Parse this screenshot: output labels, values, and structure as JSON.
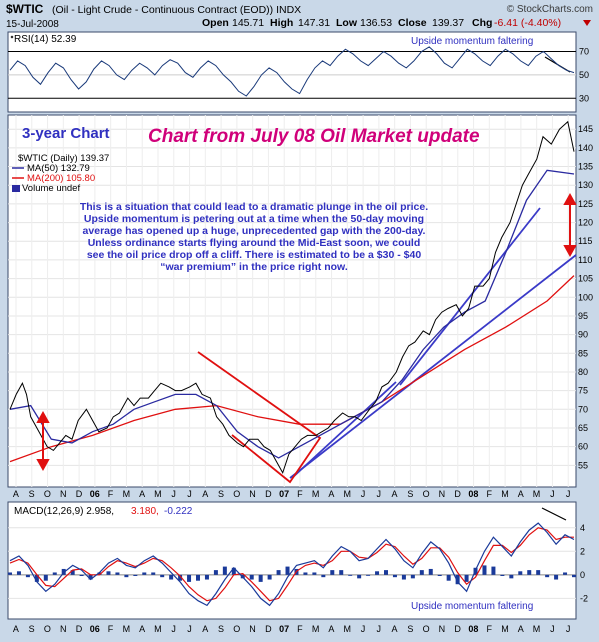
{
  "header": {
    "symbol": "$WTIC",
    "name": "(Oil - Light Crude - Continuous Contract (EOD)) INDX",
    "watermark": "© StockCharts.com",
    "date": "15-Jul-2008",
    "open_label": "Open",
    "open": "145.71",
    "high_label": "High",
    "high": "147.31",
    "low_label": "Low",
    "low": "136.53",
    "close_label": "Close",
    "close": "139.37",
    "chg_label": "Chg",
    "chg": "-6.41 (-4.40%)"
  },
  "rsi_panel": {
    "label": "RSI(14) 52.39",
    "annotation": "Upside momentum faltering",
    "ticks": [
      "70",
      "50",
      "30"
    ]
  },
  "annotations": {
    "chart_span": "3-year Chart",
    "title": "Chart from July 08 Oil Market update",
    "commentary": [
      "This is a situation that could lead to a dramatic plunge in the oil price.",
      "Upside momentum is petering out at a time when the 50-day moving",
      "average has opened up a huge, unprecedented gap with the 200-day.",
      "Unless ordinance starts flying around the Mid-East soon, we could",
      "see the oil price drop off a cliff. There is estimated to be a $30 - $40",
      "“war premium” in the price right now."
    ]
  },
  "price_legend": {
    "price": "$WTIC (Daily) 139.37",
    "ma50": "MA(50) 132.79",
    "ma200": "MA(200) 105.80",
    "volume": "Volume undef"
  },
  "macd_panel": {
    "label": "MACD(12,26,9) 2.958,",
    "signal": "3.180,",
    "hist": "-0.222",
    "annotation": "Upside momentum faltering",
    "ticks": [
      "4",
      "2",
      "0",
      "-2"
    ]
  },
  "x_axis_labels": [
    "A",
    "S",
    "O",
    "N",
    "D",
    "06",
    "F",
    "M",
    "A",
    "M",
    "J",
    "J",
    "A",
    "S",
    "O",
    "N",
    "D",
    "07",
    "F",
    "M",
    "A",
    "M",
    "J",
    "J",
    "A",
    "S",
    "O",
    "N",
    "D",
    "08",
    "F",
    "M",
    "A",
    "M",
    "J",
    "J"
  ],
  "colors": {
    "page_bg": "#c9d8e8",
    "panel_bg": "#ffffff",
    "price_line": "#000000",
    "ma50": "#2a2aa0",
    "ma200": "#e01010",
    "trendline": "#3a3ac8",
    "wedge": "#e01010",
    "title_magenta": "#d0007a",
    "commentary_blue": "#3030c0"
  },
  "chart_data": {
    "type": "line",
    "price_axis": {
      "ticks": [
        55,
        60,
        65,
        70,
        75,
        80,
        85,
        90,
        95,
        100,
        105,
        110,
        115,
        120,
        125,
        130,
        135,
        140,
        145
      ],
      "range": [
        50,
        148
      ]
    },
    "price": [
      [
        0,
        70
      ],
      [
        3,
        74
      ],
      [
        6,
        77
      ],
      [
        8,
        74
      ],
      [
        10,
        68
      ],
      [
        13,
        65
      ],
      [
        16,
        62
      ],
      [
        18,
        60
      ],
      [
        21,
        59
      ],
      [
        24,
        61
      ],
      [
        27,
        63
      ],
      [
        30,
        62
      ],
      [
        33,
        67
      ],
      [
        37,
        70
      ],
      [
        40,
        67
      ],
      [
        43,
        64
      ],
      [
        47,
        65
      ],
      [
        50,
        68
      ],
      [
        53,
        69
      ],
      [
        57,
        73
      ],
      [
        60,
        71
      ],
      [
        63,
        73
      ],
      [
        67,
        73
      ],
      [
        70,
        75
      ],
      [
        73,
        77
      ],
      [
        77,
        76
      ],
      [
        80,
        75
      ],
      [
        83,
        75
      ],
      [
        87,
        76
      ],
      [
        90,
        77
      ],
      [
        93,
        74
      ],
      [
        97,
        73
      ],
      [
        100,
        68
      ],
      [
        103,
        66
      ],
      [
        106,
        63
      ],
      [
        110,
        61
      ],
      [
        113,
        60
      ],
      [
        116,
        62
      ],
      [
        120,
        62
      ],
      [
        123,
        60
      ],
      [
        126,
        59
      ],
      [
        129,
        56
      ],
      [
        132,
        53
      ],
      [
        135,
        58
      ],
      [
        138,
        60
      ],
      [
        141,
        62
      ],
      [
        144,
        63
      ],
      [
        148,
        63
      ],
      [
        151,
        64
      ],
      [
        154,
        65
      ],
      [
        157,
        67
      ],
      [
        161,
        69
      ],
      [
        164,
        68
      ],
      [
        167,
        68
      ],
      [
        170,
        67
      ],
      [
        174,
        70
      ],
      [
        177,
        72
      ],
      [
        180,
        76
      ],
      [
        183,
        77
      ],
      [
        187,
        80
      ],
      [
        190,
        84
      ],
      [
        193,
        87
      ],
      [
        196,
        88
      ],
      [
        200,
        91
      ],
      [
        203,
        90
      ],
      [
        206,
        94
      ],
      [
        209,
        96
      ],
      [
        212,
        97
      ],
      [
        216,
        98
      ],
      [
        219,
        95
      ],
      [
        222,
        97
      ],
      [
        225,
        103
      ],
      [
        229,
        103
      ],
      [
        232,
        105
      ],
      [
        235,
        112
      ],
      [
        238,
        116
      ],
      [
        242,
        120
      ],
      [
        245,
        125
      ],
      [
        248,
        130
      ],
      [
        251,
        133
      ],
      [
        255,
        137
      ],
      [
        258,
        143
      ],
      [
        262,
        141
      ],
      [
        266,
        145
      ],
      [
        270,
        147
      ],
      [
        273,
        139
      ]
    ],
    "ma50": [
      [
        0,
        70
      ],
      [
        10,
        71
      ],
      [
        20,
        62
      ],
      [
        30,
        61
      ],
      [
        40,
        64
      ],
      [
        50,
        66
      ],
      [
        60,
        70
      ],
      [
        70,
        72
      ],
      [
        80,
        74
      ],
      [
        90,
        74
      ],
      [
        100,
        71
      ],
      [
        110,
        64
      ],
      [
        120,
        60
      ],
      [
        130,
        57
      ],
      [
        140,
        60
      ],
      [
        150,
        63
      ],
      [
        160,
        66
      ],
      [
        170,
        69
      ],
      [
        180,
        72
      ],
      [
        190,
        78
      ],
      [
        200,
        86
      ],
      [
        210,
        92
      ],
      [
        220,
        96
      ],
      [
        230,
        99
      ],
      [
        240,
        112
      ],
      [
        250,
        126
      ],
      [
        260,
        134
      ],
      [
        273,
        133
      ]
    ],
    "ma200": [
      [
        0,
        56
      ],
      [
        20,
        60
      ],
      [
        40,
        63
      ],
      [
        60,
        67
      ],
      [
        80,
        70
      ],
      [
        100,
        71
      ],
      [
        120,
        68
      ],
      [
        140,
        66
      ],
      [
        160,
        66
      ],
      [
        180,
        72
      ],
      [
        200,
        79
      ],
      [
        220,
        86
      ],
      [
        240,
        92
      ],
      [
        260,
        99
      ],
      [
        273,
        105.8
      ]
    ],
    "rsi": {
      "ylim": [
        20,
        85
      ],
      "values": [
        54,
        62,
        58,
        48,
        42,
        52,
        60,
        56,
        46,
        38,
        44,
        55,
        62,
        58,
        50,
        46,
        54,
        60,
        56,
        50,
        58,
        63,
        60,
        52,
        48,
        56,
        62,
        58,
        50,
        44,
        36,
        32,
        40,
        50,
        56,
        52,
        44,
        38,
        34,
        46,
        56,
        62,
        58,
        66,
        72,
        68,
        62,
        58,
        64,
        70,
        66,
        60,
        56,
        62,
        70,
        74,
        68,
        60,
        56,
        64,
        72,
        68,
        62,
        58,
        66,
        72,
        68,
        62,
        58,
        66,
        70,
        64,
        58,
        54,
        52
      ]
    },
    "macd": {
      "ylim": [
        -3.5,
        5
      ],
      "macd": [
        1.2,
        1.6,
        0.8,
        -0.6,
        -1.4,
        -0.8,
        0.2,
        0.8,
        0.4,
        -0.4,
        0.2,
        1.0,
        1.4,
        0.8,
        0.6,
        1.2,
        1.6,
        1.0,
        0.2,
        -0.6,
        -1.6,
        -2.2,
        -2.6,
        -1.6,
        -0.4,
        0.6,
        -0.2,
        -1.0,
        -2.0,
        -2.6,
        -1.6,
        -0.2,
        0.8,
        1.0,
        1.2,
        0.6,
        1.6,
        2.4,
        2.0,
        1.2,
        1.4,
        2.2,
        3.0,
        2.2,
        1.2,
        0.6,
        1.8,
        2.8,
        2.2,
        1.0,
        -0.6,
        -1.4,
        0.4,
        2.0,
        3.2,
        2.4,
        1.6,
        2.8,
        3.8,
        4.4,
        3.6,
        2.6,
        3.4,
        3.0
      ],
      "signal": [
        1.0,
        1.3,
        1.0,
        0.0,
        -0.9,
        -1.0,
        -0.3,
        0.4,
        0.5,
        0.0,
        0.0,
        0.7,
        1.2,
        1.0,
        0.7,
        1.0,
        1.4,
        1.2,
        0.6,
        -0.1,
        -1.0,
        -1.7,
        -2.2,
        -2.0,
        -1.1,
        0.0,
        0.1,
        -0.6,
        -1.4,
        -2.2,
        -2.0,
        -0.9,
        0.3,
        0.8,
        1.0,
        0.8,
        1.2,
        2.0,
        2.0,
        1.5,
        1.4,
        1.9,
        2.6,
        2.4,
        1.6,
        0.9,
        1.4,
        2.3,
        2.3,
        1.5,
        0.2,
        -0.8,
        -0.2,
        1.2,
        2.5,
        2.5,
        1.9,
        2.5,
        3.4,
        4.0,
        3.8,
        3.0,
        3.2,
        3.2
      ]
    }
  }
}
